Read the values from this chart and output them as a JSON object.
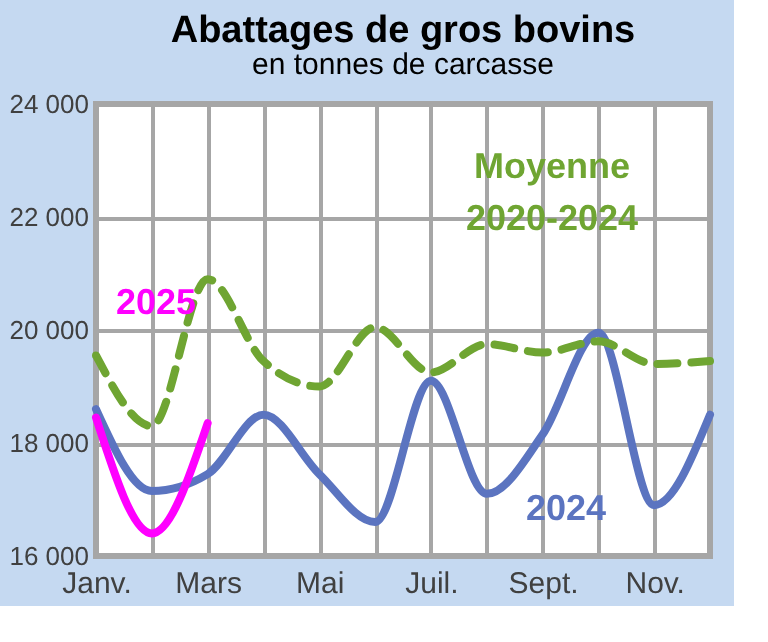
{
  "chart_data": {
    "type": "line",
    "title": "Abattages de gros bovins",
    "subtitle": "en tonnes de carcasse",
    "categories": [
      "Janv.",
      null,
      "Mars",
      null,
      "Mai",
      null,
      "Juil.",
      null,
      "Sept.",
      null,
      "Nov.",
      null
    ],
    "series": [
      {
        "name": "2024",
        "color": "#5b74c0",
        "line_style": "solid",
        "values": [
          18600,
          17150,
          17450,
          18500,
          17450,
          16600,
          19100,
          17100,
          18150,
          19950,
          16900,
          18500
        ]
      },
      {
        "name": "Moyenne 2020-2024",
        "color": "#6fa532",
        "line_style": "dashed",
        "values": [
          19550,
          18300,
          20900,
          19450,
          19000,
          20050,
          19250,
          19750,
          19600,
          19800,
          19400,
          19450
        ]
      },
      {
        "name": "2025",
        "color": "#ff00ff",
        "line_style": "solid",
        "values": [
          18450,
          16400,
          18350,
          null,
          null,
          null,
          null,
          null,
          null,
          null,
          null,
          null
        ]
      }
    ],
    "ylim": [
      16000,
      24000
    ],
    "yticks": [
      {
        "value": 16000,
        "label": "16 000"
      },
      {
        "value": 18000,
        "label": "18 000"
      },
      {
        "value": 20000,
        "label": "20 000"
      },
      {
        "value": 22000,
        "label": "22 000"
      },
      {
        "value": 24000,
        "label": "24 000"
      }
    ],
    "grid": true,
    "legend": false,
    "marker": "none"
  }
}
